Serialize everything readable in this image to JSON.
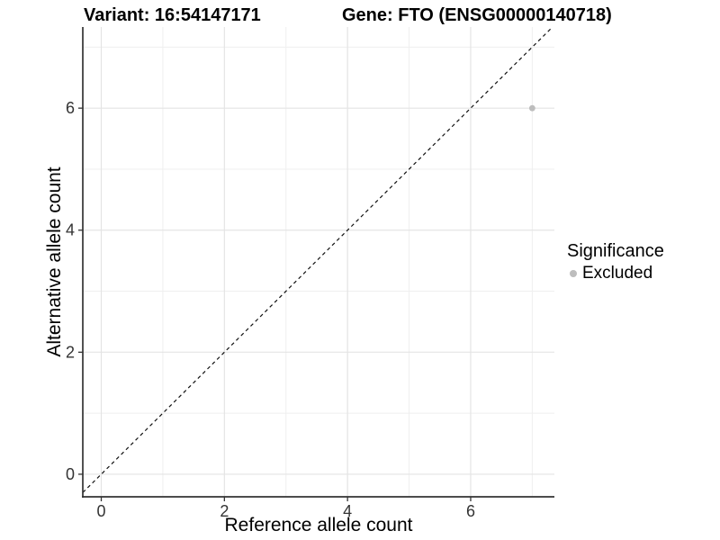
{
  "header": {
    "variant_title": "Variant: 16:54147171",
    "gene_title": "Gene: FTO (ENSG00000140718)"
  },
  "chart_data": {
    "type": "scatter",
    "title": "Variant: 16:54147171   Gene: FTO (ENSG00000140718)",
    "xlabel": "Reference allele count",
    "ylabel": "Alternative allele count",
    "xlim": [
      -0.3,
      7.36
    ],
    "ylim": [
      -0.37,
      7.33
    ],
    "x_ticks": [
      0,
      2,
      4,
      6
    ],
    "y_ticks": [
      0,
      2,
      4,
      6
    ],
    "minor_grid_x": [
      1,
      3,
      5,
      7
    ],
    "minor_grid_y": [
      1,
      3,
      5,
      7
    ],
    "grid": "on",
    "legend_position": "right",
    "series": [
      {
        "name": "Excluded",
        "color": "#bdbdbd",
        "points": [
          {
            "x": 7,
            "y": 6
          }
        ]
      }
    ],
    "reference_line": {
      "kind": "identity",
      "slope": 1,
      "intercept": 0,
      "style": "dashed",
      "color": "#111111"
    }
  },
  "legend": {
    "title": "Significance",
    "items": [
      {
        "label": "Excluded",
        "color": "#bdbdbd"
      }
    ]
  },
  "colors": {
    "background": "#ffffff",
    "grid_major": "#e4e4e4",
    "grid_minor": "#efefef",
    "axis_line": "#333333",
    "tick_label": "#333333",
    "point": "#bdbdbd",
    "dashed_line": "#111111"
  }
}
